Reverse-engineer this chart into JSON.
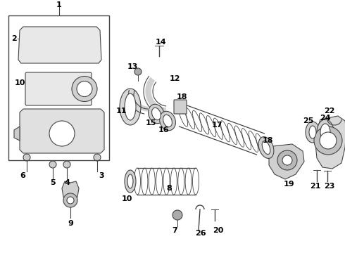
{
  "bg_color": "#ffffff",
  "lc": "#444444",
  "fig_width": 4.9,
  "fig_height": 3.6,
  "dpi": 100,
  "xlim": [
    0,
    490
  ],
  "ylim": [
    0,
    360
  ]
}
